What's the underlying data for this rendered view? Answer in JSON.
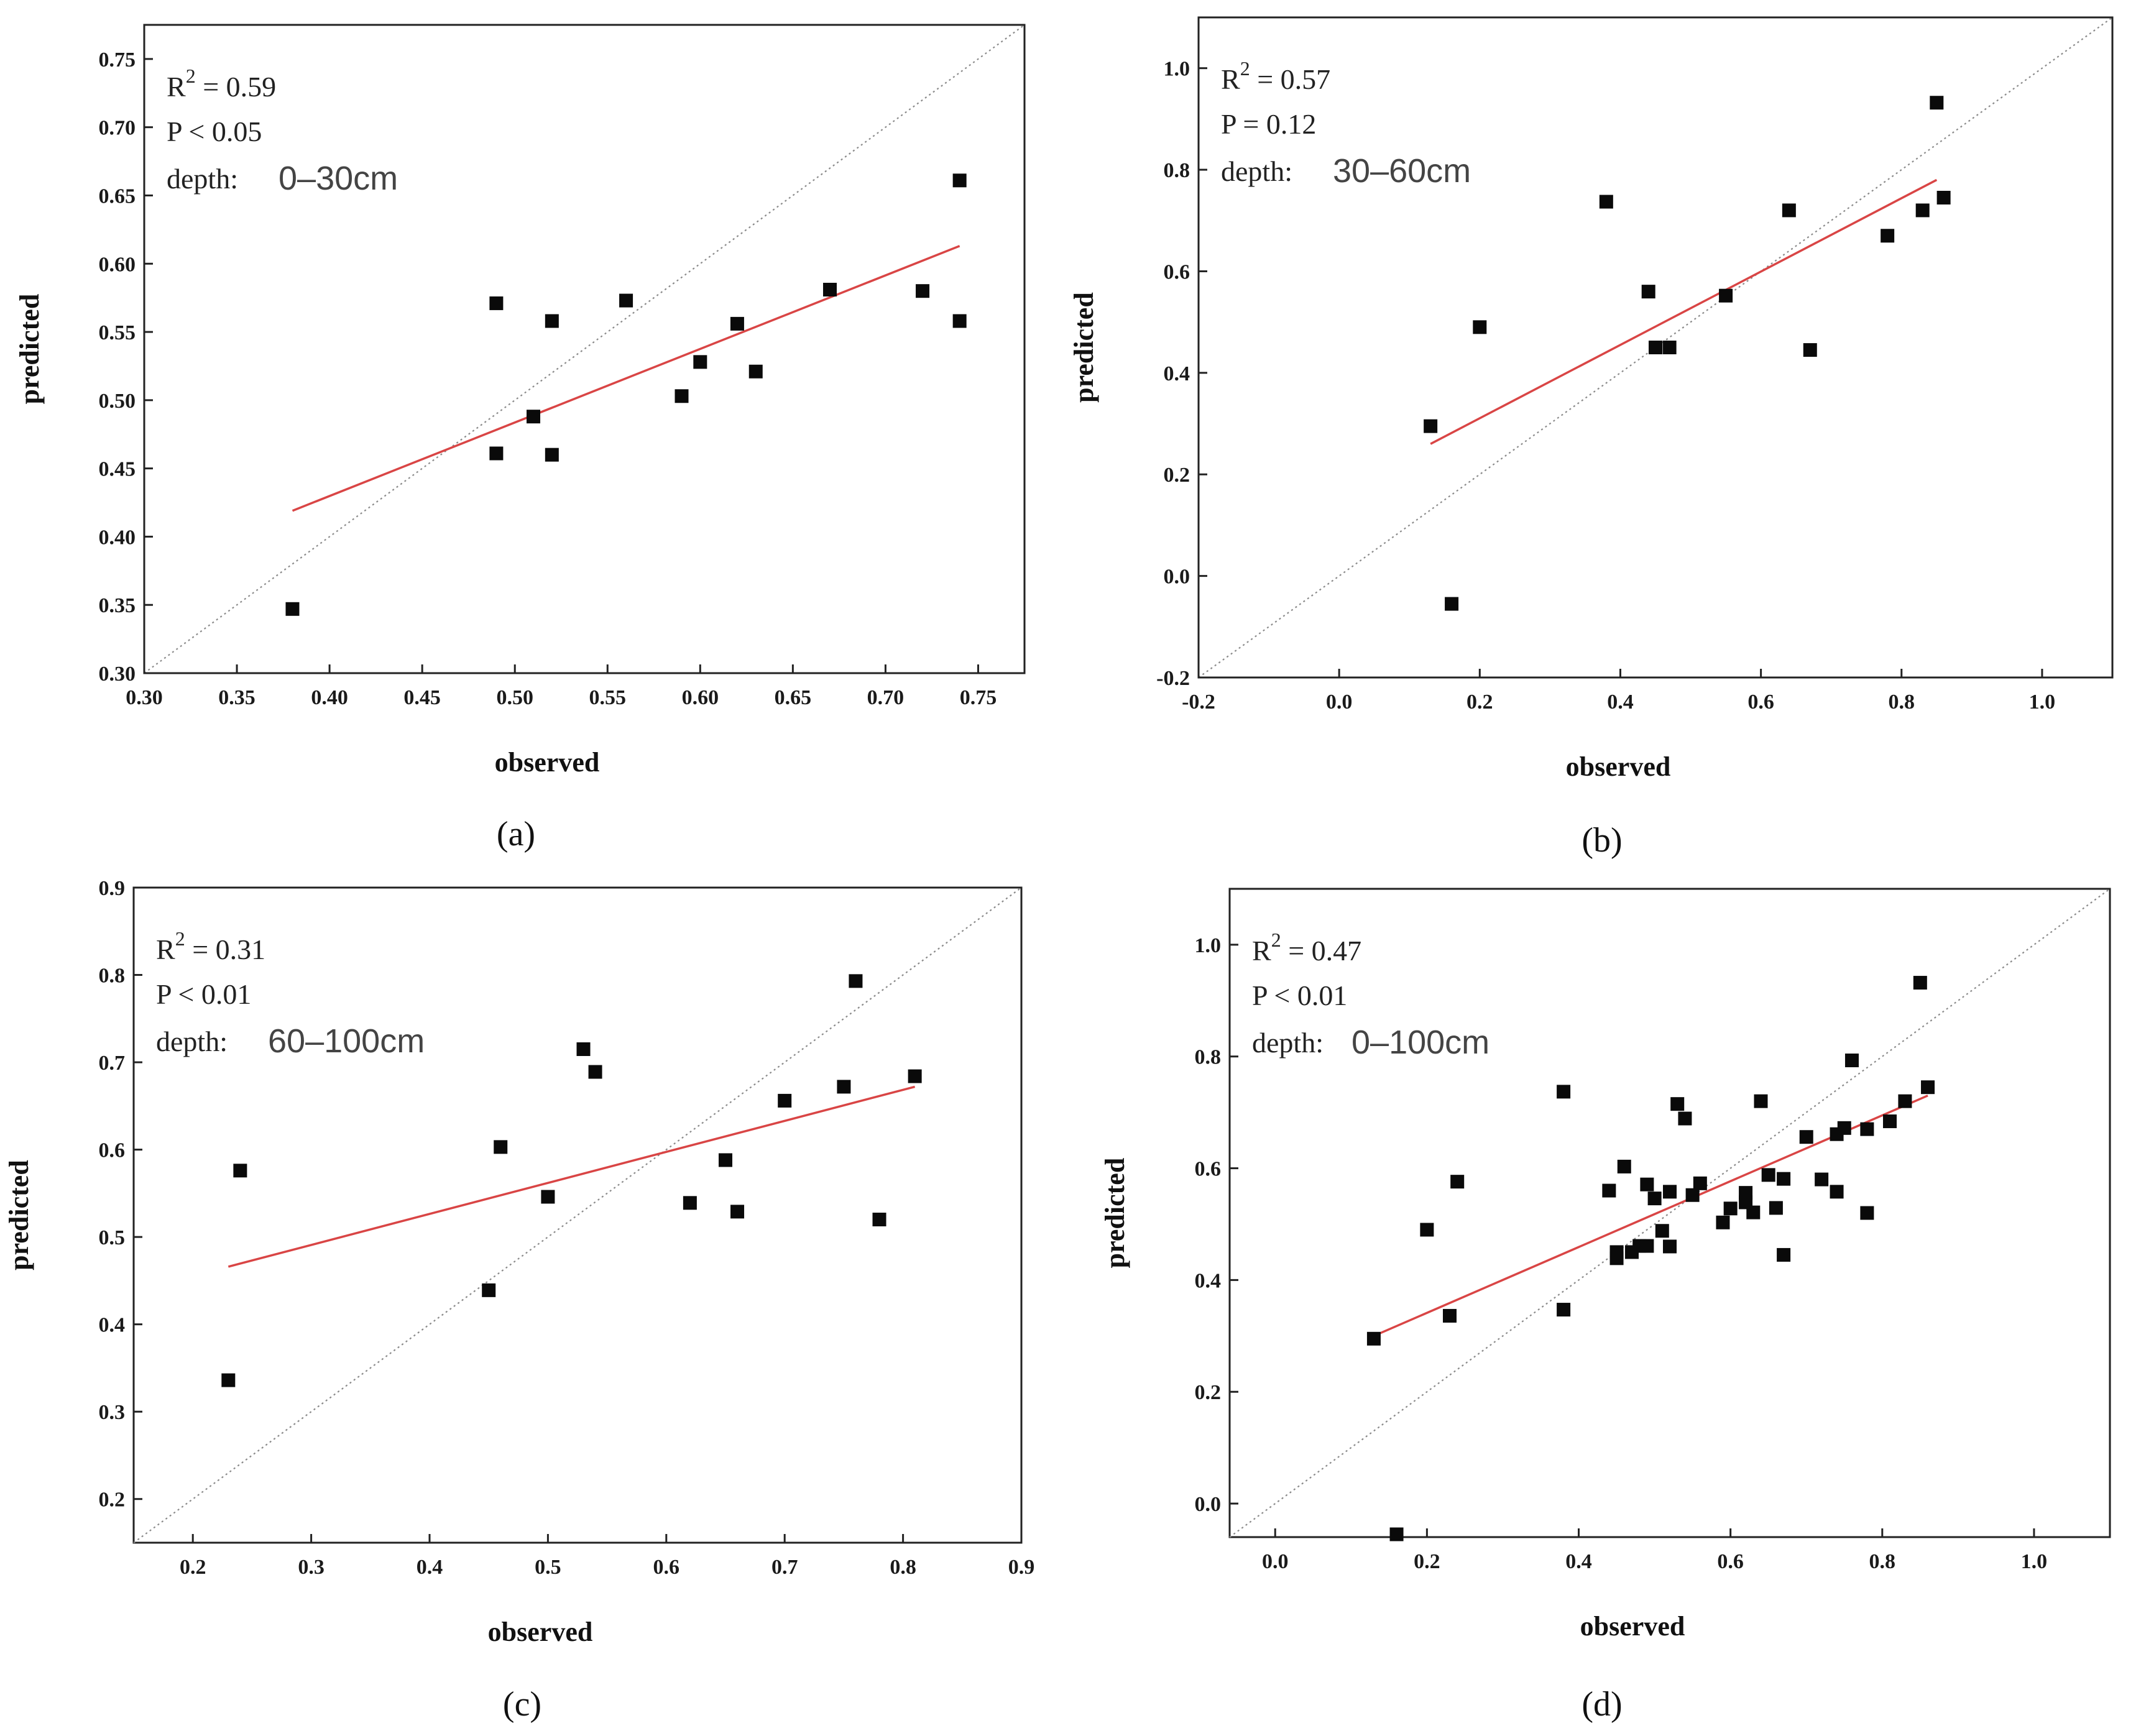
{
  "chart_data": [
    {
      "type": "scatter",
      "panel_label": "(a)",
      "xlabel": "observed",
      "ylabel": "predicted",
      "xlim": [
        0.3,
        0.775
      ],
      "ylim": [
        0.3,
        0.775
      ],
      "xticks": [
        "0.30",
        "0.35",
        "0.40",
        "0.45",
        "0.50",
        "0.55",
        "0.60",
        "0.65",
        "0.70",
        "0.75"
      ],
      "yticks": [
        "0.30",
        "0.35",
        "0.40",
        "0.45",
        "0.50",
        "0.55",
        "0.60",
        "0.65",
        "0.70",
        "0.75"
      ],
      "stats": {
        "r2_label": "R",
        "r2_sup": "2",
        "r2_value": " = 0.59",
        "p": "P < 0.05",
        "depth_label": "depth:",
        "depth_value": "0–30cm"
      },
      "points": [
        [
          0.38,
          0.347
        ],
        [
          0.49,
          0.571
        ],
        [
          0.49,
          0.461
        ],
        [
          0.51,
          0.488
        ],
        [
          0.52,
          0.558
        ],
        [
          0.52,
          0.46
        ],
        [
          0.56,
          0.573
        ],
        [
          0.59,
          0.503
        ],
        [
          0.6,
          0.528
        ],
        [
          0.62,
          0.556
        ],
        [
          0.63,
          0.521
        ],
        [
          0.67,
          0.581
        ],
        [
          0.72,
          0.58
        ],
        [
          0.74,
          0.661
        ],
        [
          0.74,
          0.558
        ]
      ],
      "fit_line": [
        [
          0.38,
          0.419
        ],
        [
          0.74,
          0.613
        ]
      ],
      "grid": false
    },
    {
      "type": "scatter",
      "panel_label": "(b)",
      "xlabel": "observed",
      "ylabel": "predicted",
      "xlim": [
        -0.2,
        1.1
      ],
      "ylim": [
        -0.2,
        1.1
      ],
      "xticks": [
        "-0.2",
        "0.0",
        "0.2",
        "0.4",
        "0.6",
        "0.8",
        "1.0"
      ],
      "yticks": [
        "-0.2",
        "0.0",
        "0.2",
        "0.4",
        "0.6",
        "0.8",
        "1.0"
      ],
      "stats": {
        "r2_label": "R",
        "r2_sup": "2",
        "r2_value": " = 0.57",
        "p": "P = 0.12",
        "depth_label": "depth:",
        "depth_value": "30–60cm"
      },
      "points": [
        [
          0.13,
          0.295
        ],
        [
          0.16,
          -0.055
        ],
        [
          0.2,
          0.49
        ],
        [
          0.38,
          0.737
        ],
        [
          0.44,
          0.56
        ],
        [
          0.45,
          0.45
        ],
        [
          0.47,
          0.45
        ],
        [
          0.55,
          0.552
        ],
        [
          0.64,
          0.72
        ],
        [
          0.67,
          0.445
        ],
        [
          0.78,
          0.67
        ],
        [
          0.83,
          0.72
        ],
        [
          0.85,
          0.932
        ],
        [
          0.86,
          0.745
        ]
      ],
      "fit_line": [
        [
          0.13,
          0.26
        ],
        [
          0.85,
          0.78
        ]
      ],
      "grid": false
    },
    {
      "type": "scatter",
      "panel_label": "(c)",
      "xlabel": "observed",
      "ylabel": "predicted",
      "xlim": [
        0.15,
        0.9
      ],
      "ylim": [
        0.15,
        0.9
      ],
      "xticks": [
        "0.2",
        "0.3",
        "0.4",
        "0.5",
        "0.6",
        "0.7",
        "0.8",
        "0.9"
      ],
      "yticks": [
        "0.2",
        "0.3",
        "0.4",
        "0.5",
        "0.6",
        "0.7",
        "0.8",
        "0.9"
      ],
      "stats": {
        "r2_label": "R",
        "r2_sup": "2",
        "r2_value": " = 0.31",
        "p": "P < 0.01",
        "depth_label": "depth:",
        "depth_value": "60–100cm"
      },
      "points": [
        [
          0.23,
          0.336
        ],
        [
          0.24,
          0.576
        ],
        [
          0.45,
          0.439
        ],
        [
          0.46,
          0.603
        ],
        [
          0.5,
          0.546
        ],
        [
          0.53,
          0.715
        ],
        [
          0.54,
          0.689
        ],
        [
          0.62,
          0.539
        ],
        [
          0.65,
          0.588
        ],
        [
          0.66,
          0.529
        ],
        [
          0.7,
          0.656
        ],
        [
          0.75,
          0.672
        ],
        [
          0.76,
          0.793
        ],
        [
          0.78,
          0.52
        ],
        [
          0.81,
          0.684
        ]
      ],
      "fit_line": [
        [
          0.23,
          0.466
        ],
        [
          0.81,
          0.672
        ]
      ],
      "grid": false
    },
    {
      "type": "scatter",
      "panel_label": "(d)",
      "xlabel": "observed",
      "ylabel": "predicted",
      "xlim": [
        -0.06,
        1.1
      ],
      "ylim": [
        -0.06,
        1.1
      ],
      "xticks": [
        "0.0",
        "0.2",
        "0.4",
        "0.6",
        "0.8",
        "1.0"
      ],
      "yticks": [
        "0.0",
        "0.2",
        "0.4",
        "0.6",
        "0.8",
        "1.0"
      ],
      "stats": {
        "r2_label": "R",
        "r2_sup": "2",
        "r2_value": " = 0.47",
        "p": "P < 0.01",
        "depth_label": "depth:",
        "depth_value": "0–100cm"
      },
      "points": [
        [
          0.13,
          0.295
        ],
        [
          0.16,
          -0.055
        ],
        [
          0.2,
          0.49
        ],
        [
          0.23,
          0.336
        ],
        [
          0.24,
          0.576
        ],
        [
          0.38,
          0.737
        ],
        [
          0.38,
          0.347
        ],
        [
          0.44,
          0.56
        ],
        [
          0.45,
          0.45
        ],
        [
          0.45,
          0.439
        ],
        [
          0.46,
          0.603
        ],
        [
          0.47,
          0.45
        ],
        [
          0.48,
          0.461
        ],
        [
          0.49,
          0.571
        ],
        [
          0.49,
          0.461
        ],
        [
          0.5,
          0.546
        ],
        [
          0.51,
          0.488
        ],
        [
          0.52,
          0.558
        ],
        [
          0.52,
          0.46
        ],
        [
          0.53,
          0.715
        ],
        [
          0.54,
          0.689
        ],
        [
          0.55,
          0.552
        ],
        [
          0.56,
          0.573
        ],
        [
          0.59,
          0.503
        ],
        [
          0.6,
          0.528
        ],
        [
          0.62,
          0.556
        ],
        [
          0.62,
          0.539
        ],
        [
          0.63,
          0.521
        ],
        [
          0.64,
          0.72
        ],
        [
          0.65,
          0.588
        ],
        [
          0.66,
          0.529
        ],
        [
          0.67,
          0.445
        ],
        [
          0.67,
          0.581
        ],
        [
          0.7,
          0.656
        ],
        [
          0.72,
          0.58
        ],
        [
          0.74,
          0.661
        ],
        [
          0.74,
          0.558
        ],
        [
          0.75,
          0.672
        ],
        [
          0.76,
          0.793
        ],
        [
          0.78,
          0.67
        ],
        [
          0.78,
          0.52
        ],
        [
          0.81,
          0.684
        ],
        [
          0.83,
          0.72
        ],
        [
          0.85,
          0.932
        ],
        [
          0.86,
          0.745
        ]
      ],
      "fit_line": [
        [
          0.13,
          0.3
        ],
        [
          0.86,
          0.73
        ]
      ],
      "grid": false
    }
  ]
}
